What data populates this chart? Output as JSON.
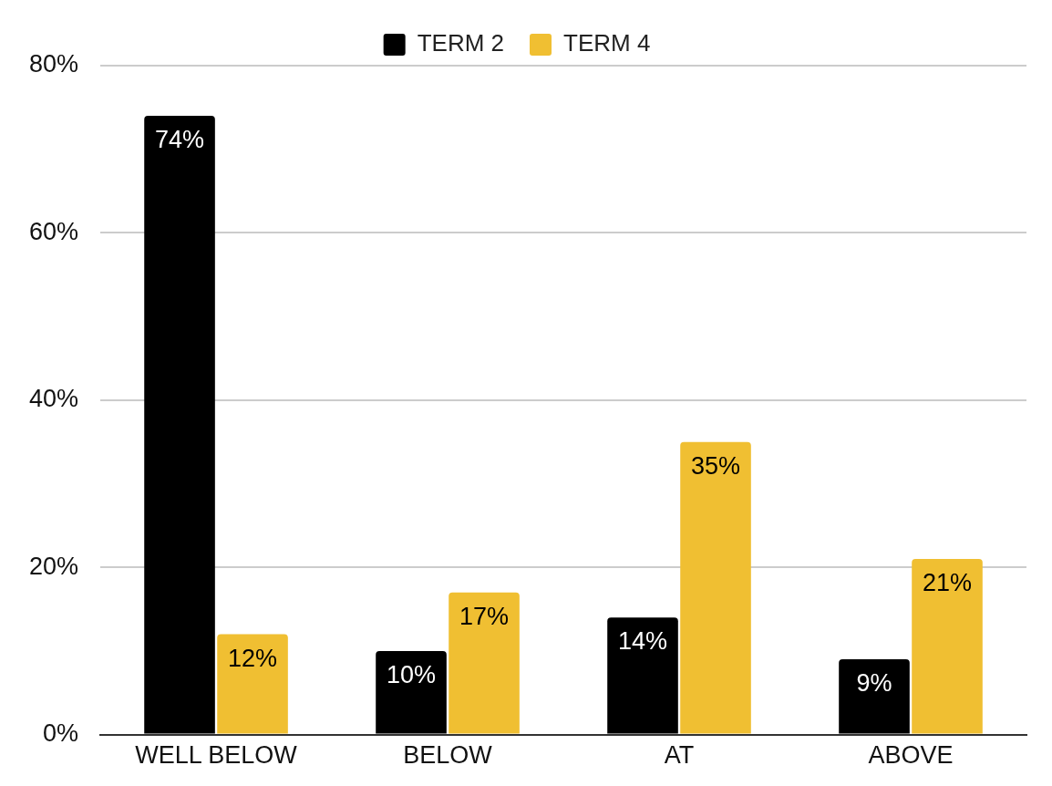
{
  "chart_data": {
    "type": "bar",
    "categories": [
      "WELL BELOW",
      "BELOW",
      "AT",
      "ABOVE"
    ],
    "series": [
      {
        "name": "TERM 2",
        "color": "#000000",
        "values": [
          74,
          10,
          14,
          9
        ],
        "value_labels": [
          "74%",
          "10%",
          "14%",
          "9%"
        ]
      },
      {
        "name": "TERM 4",
        "color": "#f0bf32",
        "values": [
          12,
          17,
          35,
          21
        ],
        "value_labels": [
          "12%",
          "17%",
          "35%",
          "21%"
        ]
      }
    ],
    "ylim": [
      0,
      80
    ],
    "yticks": [
      {
        "value": 0,
        "label": "0%"
      },
      {
        "value": 20,
        "label": "20%"
      },
      {
        "value": 40,
        "label": "40%"
      },
      {
        "value": 60,
        "label": "60%"
      },
      {
        "value": 80,
        "label": "80%"
      }
    ],
    "grid": "y",
    "legend": "top"
  }
}
